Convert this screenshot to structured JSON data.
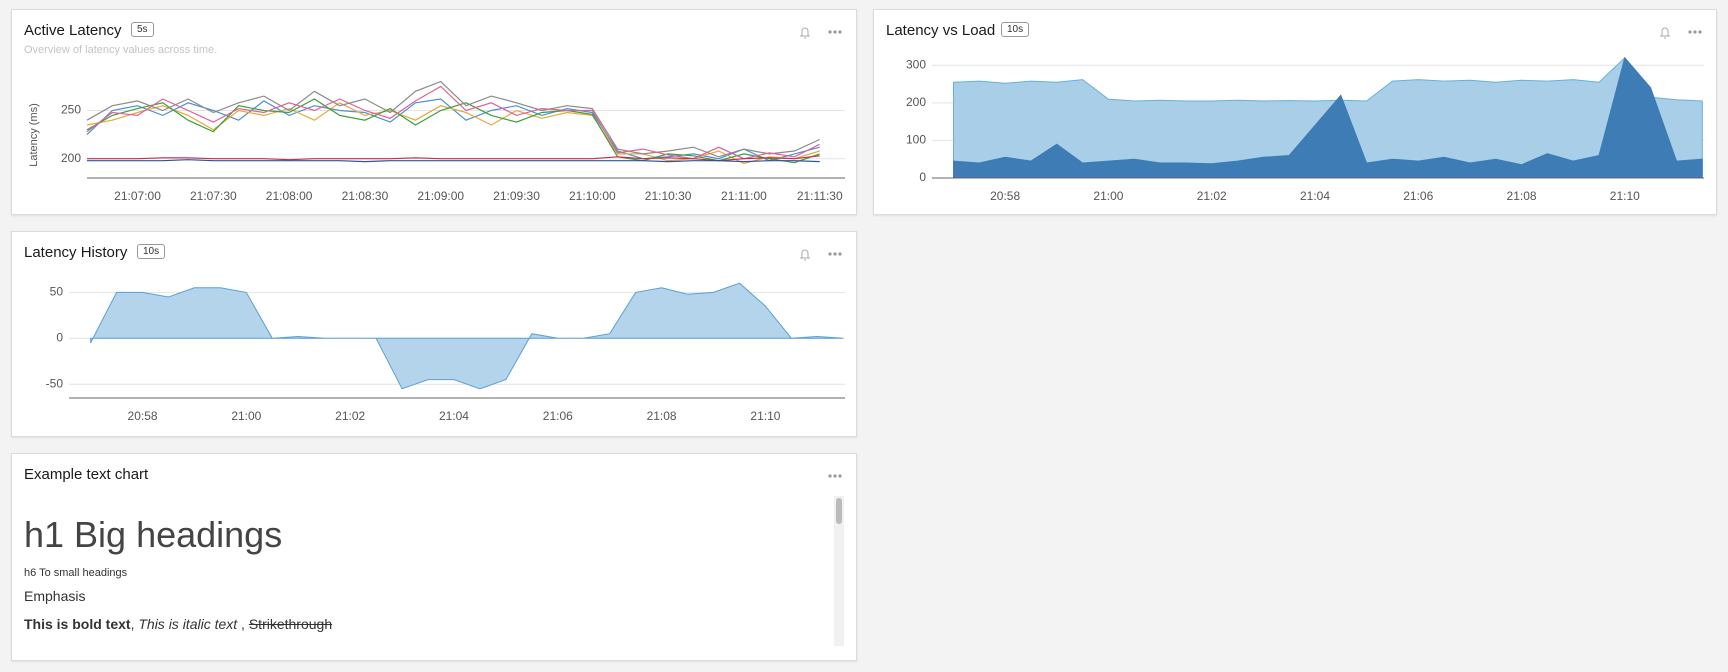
{
  "chart_data": [
    {
      "type": "line",
      "title": "Active Latency",
      "badge": "5s",
      "subtitle": "Overview of latency values across time.",
      "y_label": "Latency (ms)",
      "x": [
        "21:06:40",
        "21:06:50",
        "21:07:00",
        "21:07:10",
        "21:07:20",
        "21:07:30",
        "21:07:40",
        "21:07:50",
        "21:08:00",
        "21:08:10",
        "21:08:20",
        "21:08:30",
        "21:08:40",
        "21:08:50",
        "21:09:00",
        "21:09:10",
        "21:09:20",
        "21:09:30",
        "21:09:40",
        "21:09:50",
        "21:10:00",
        "21:10:10",
        "21:10:20",
        "21:10:30",
        "21:10:40",
        "21:10:50",
        "21:11:00",
        "21:11:10",
        "21:11:20",
        "21:11:30"
      ],
      "xlim": [
        "21:06:40",
        "21:11:40"
      ],
      "xticks": [
        "21:07:00",
        "21:07:30",
        "21:08:00",
        "21:08:30",
        "21:09:00",
        "21:09:30",
        "21:10:00",
        "21:10:30",
        "21:11:00",
        "21:11:30"
      ],
      "ylim": [
        180,
        290
      ],
      "yticks": [
        200,
        250
      ],
      "grid": true,
      "series": [
        {
          "color": "#4a90d9",
          "values": [
            225,
            250,
            255,
            245,
            258,
            250,
            240,
            260,
            245,
            255,
            250,
            248,
            238,
            258,
            262,
            240,
            250,
            255,
            245,
            252,
            248,
            208,
            200,
            202,
            205,
            200,
            210,
            198,
            205,
            212
          ]
        },
        {
          "color": "#e8a838",
          "values": [
            235,
            240,
            248,
            255,
            245,
            230,
            250,
            245,
            252,
            240,
            258,
            245,
            250,
            240,
            255,
            248,
            235,
            250,
            242,
            248,
            245,
            205,
            205,
            198,
            200,
            208,
            195,
            202,
            200,
            208
          ]
        },
        {
          "color": "#3ca03c",
          "values": [
            230,
            245,
            252,
            258,
            240,
            228,
            255,
            250,
            248,
            262,
            245,
            240,
            252,
            235,
            250,
            258,
            245,
            238,
            248,
            250,
            246,
            202,
            198,
            205,
            203,
            198,
            205,
            200,
            196,
            205
          ]
        },
        {
          "color": "#8a8a8a",
          "values": [
            240,
            255,
            260,
            250,
            262,
            248,
            258,
            265,
            250,
            270,
            255,
            262,
            248,
            270,
            280,
            255,
            265,
            258,
            250,
            255,
            252,
            210,
            205,
            208,
            212,
            202,
            210,
            205,
            208,
            220
          ]
        },
        {
          "color": "#e0609a",
          "values": [
            228,
            248,
            245,
            262,
            250,
            238,
            252,
            248,
            258,
            250,
            262,
            250,
            242,
            260,
            275,
            250,
            258,
            245,
            252,
            250,
            250,
            206,
            210,
            204,
            200,
            212,
            200,
            206,
            202,
            215
          ]
        },
        {
          "color": "#c0304a",
          "values": [
            200,
            200,
            200,
            201,
            201,
            200,
            200,
            200,
            199,
            200,
            200,
            200,
            200,
            201,
            200,
            200,
            200,
            200,
            200,
            200,
            200,
            202,
            200,
            201,
            200,
            198,
            200,
            201,
            200,
            203
          ]
        },
        {
          "color": "#3050a0",
          "values": [
            198,
            198,
            198,
            198,
            199,
            198,
            198,
            198,
            198,
            198,
            198,
            197,
            198,
            198,
            198,
            198,
            198,
            198,
            198,
            198,
            198,
            198,
            198,
            197,
            198,
            198,
            197,
            198,
            198,
            197
          ]
        }
      ]
    },
    {
      "type": "area",
      "title": "Latency vs Load",
      "badge": "10s",
      "x": [
        "20:57:00",
        "20:57:30",
        "20:58:00",
        "20:58:30",
        "20:59:00",
        "20:59:30",
        "21:00:00",
        "21:00:30",
        "21:01:00",
        "21:01:30",
        "21:02:00",
        "21:02:30",
        "21:03:00",
        "21:03:30",
        "21:04:00",
        "21:04:30",
        "21:05:00",
        "21:05:30",
        "21:06:00",
        "21:06:30",
        "21:07:00",
        "21:07:30",
        "21:08:00",
        "21:08:30",
        "21:09:00",
        "21:09:30",
        "21:10:00",
        "21:10:30",
        "21:11:00",
        "21:11:30"
      ],
      "xlim": [
        "20:56:35",
        "21:11:32"
      ],
      "xticks": [
        "20:58",
        "21:00",
        "21:02",
        "21:04",
        "21:06",
        "21:08",
        "21:10"
      ],
      "ylim": [
        0,
        330
      ],
      "yticks": [
        0,
        100,
        200,
        300
      ],
      "grid": true,
      "series": [
        {
          "color": "#a9cfe8",
          "values": [
            255,
            258,
            252,
            258,
            255,
            262,
            210,
            205,
            207,
            205,
            205,
            207,
            205,
            206,
            205,
            207,
            205,
            258,
            262,
            258,
            260,
            255,
            260,
            258,
            262,
            255,
            320,
            215,
            208,
            205
          ]
        },
        {
          "color": "#3d7cb5",
          "values": [
            45,
            40,
            55,
            45,
            90,
            40,
            45,
            50,
            40,
            40,
            38,
            45,
            55,
            60,
            140,
            220,
            40,
            50,
            45,
            55,
            40,
            50,
            35,
            65,
            45,
            60,
            320,
            240,
            45,
            50
          ]
        }
      ]
    },
    {
      "type": "area",
      "title": "Latency History",
      "badge": "10s",
      "x": [
        "20:57:00",
        "20:57:30",
        "20:58:00",
        "20:58:30",
        "20:59:00",
        "20:59:30",
        "21:00:00",
        "21:00:30",
        "21:01:00",
        "21:01:30",
        "21:02:00",
        "21:02:30",
        "21:03:00",
        "21:03:30",
        "21:04:00",
        "21:04:30",
        "21:05:00",
        "21:05:30",
        "21:06:00",
        "21:06:30",
        "21:07:00",
        "21:07:30",
        "21:08:00",
        "21:08:30",
        "21:09:00",
        "21:09:30",
        "21:10:00",
        "21:10:30",
        "21:11:00",
        "21:11:30"
      ],
      "xlim": [
        "20:56:35",
        "21:11:32"
      ],
      "xticks": [
        "20:58",
        "21:00",
        "21:02",
        "21:04",
        "21:06",
        "21:08",
        "21:10"
      ],
      "ylim": [
        -65,
        70
      ],
      "yticks": [
        -50,
        0,
        50
      ],
      "grid": true,
      "series": [
        {
          "color": "#b3d4ea",
          "values": [
            -5,
            50,
            50,
            45,
            55,
            55,
            50,
            0,
            2,
            0,
            0,
            0,
            -55,
            -45,
            -45,
            -55,
            -45,
            5,
            0,
            0,
            5,
            50,
            55,
            48,
            50,
            60,
            35,
            0,
            2,
            0
          ]
        }
      ]
    }
  ],
  "text_panel": {
    "title": "Example text chart",
    "h1": "h1 Big headings",
    "h6": "h6 To small headings",
    "emphasis": "Emphasis",
    "paragraph": [
      {
        "text": "This is bold text",
        "style": "bold"
      },
      {
        "text": ", "
      },
      {
        "text": "This is italic text",
        "style": "italic"
      },
      {
        "text": " , "
      },
      {
        "text": "Strikethrough",
        "style": "strike"
      }
    ]
  }
}
